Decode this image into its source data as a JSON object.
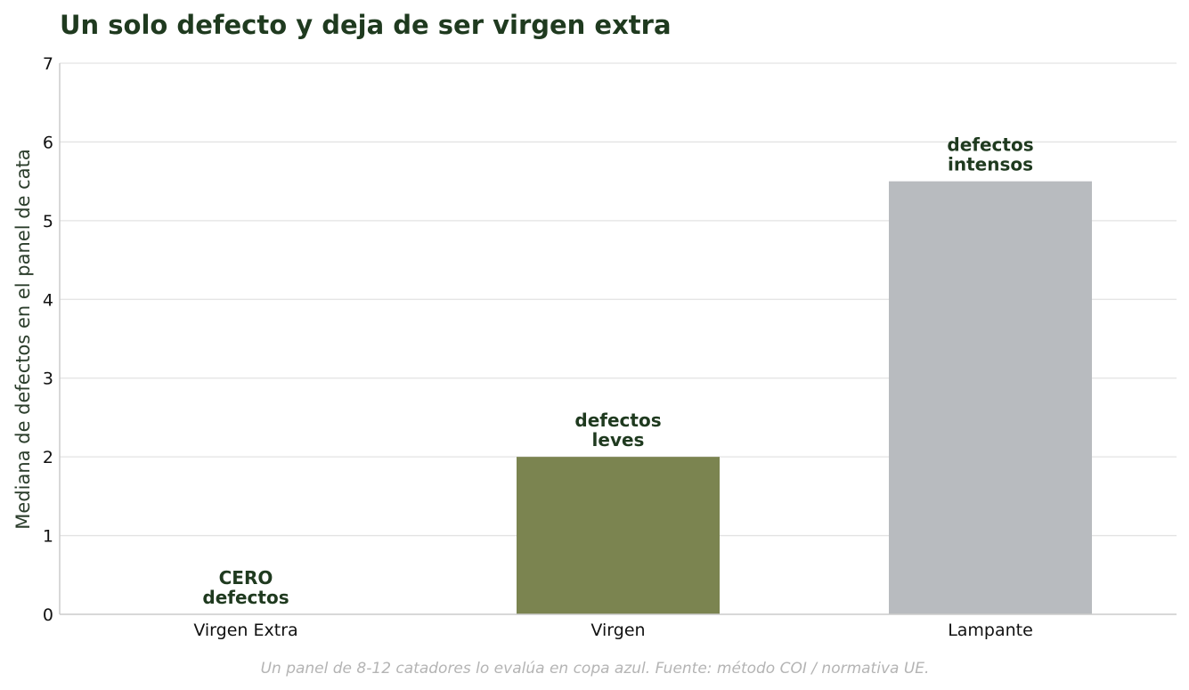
{
  "chart_data": {
    "type": "bar",
    "title": "Un solo defecto y deja de ser virgen extra",
    "xlabel": "",
    "ylabel": "Mediana de defectos en el panel de cata",
    "categories": [
      "Virgen Extra",
      "Virgen",
      "Lampante"
    ],
    "values": [
      0,
      2,
      5.5
    ],
    "bar_labels": [
      [
        "CERO",
        "defectos"
      ],
      [
        "defectos",
        "leves"
      ],
      [
        "defectos",
        "intensos"
      ]
    ],
    "colors": [
      "#7b8450",
      "#7b8450",
      "#b8bbbf"
    ],
    "ylim": [
      0,
      7
    ],
    "yticks": [
      0,
      1,
      2,
      3,
      4,
      5,
      6,
      7
    ],
    "grid": true,
    "legend": "none",
    "footnote": "Un panel de 8-12 catadores lo evalúa en copa azul. Fuente: método COI / normativa UE."
  }
}
